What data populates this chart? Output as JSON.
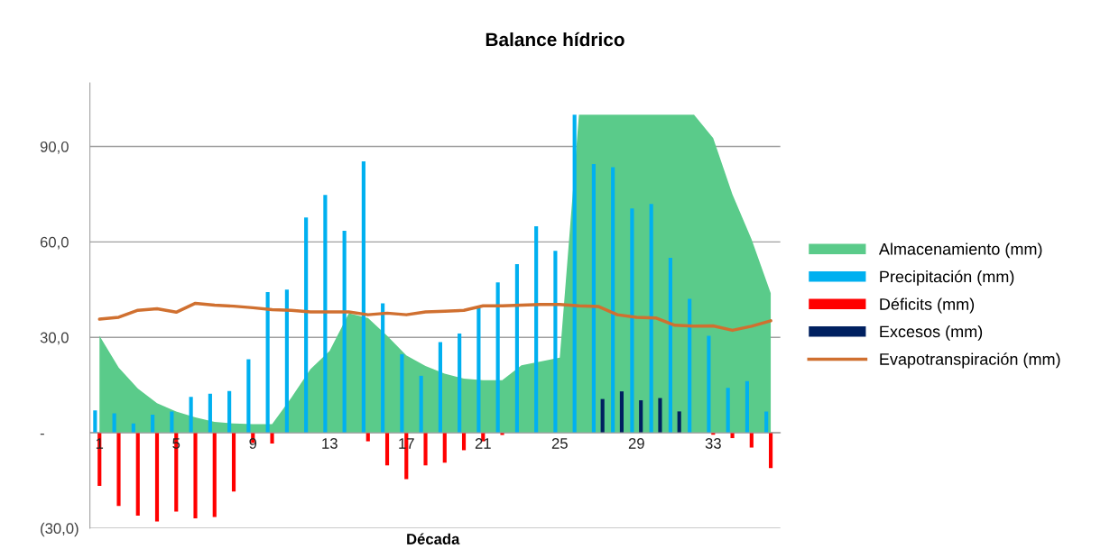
{
  "chart_data": {
    "type": "bar",
    "title": "Balance hídrico",
    "xlabel": "Década",
    "categories": [
      "1",
      null,
      null,
      null,
      "5",
      null,
      null,
      null,
      "9",
      null,
      null,
      null,
      "13",
      null,
      null,
      null,
      "17",
      null,
      null,
      null,
      "21",
      null,
      null,
      null,
      "25",
      null,
      null,
      null,
      "29",
      null,
      null,
      null,
      "33",
      null,
      null,
      null
    ],
    "series": [
      {
        "name": "Almacenamiento (mm)",
        "type": "area",
        "color": "#5acb8a",
        "values": [
          30.5,
          20.5,
          13.9,
          9.3,
          6.7,
          4.8,
          3.4,
          2.9,
          2.7,
          2.7,
          11.0,
          20.0,
          25.7,
          37.6,
          36.1,
          30.5,
          24.3,
          21.0,
          18.6,
          17.0,
          16.5,
          16.5,
          21.2,
          22.4,
          23.6,
          100,
          100,
          100,
          100,
          100,
          100,
          100,
          92.6,
          75.0,
          60.8,
          43.9
        ]
      },
      {
        "name": "Precipitación (mm)",
        "color": "#00b0f0",
        "values": [
          7.0,
          6.1,
          2.9,
          5.7,
          6.7,
          11.3,
          12.3,
          13.1,
          23.1,
          44.2,
          45.0,
          67.7,
          74.8,
          63.5,
          85.3,
          40.7,
          24.7,
          17.9,
          28.5,
          31.2,
          39.3,
          47.3,
          53.0,
          64.9,
          57.2,
          100,
          84.5,
          83.5,
          70.5,
          71.9,
          55.0,
          42.1,
          30.5,
          14.1,
          16.2,
          6.7
        ]
      },
      {
        "name": "Déficits (mm)",
        "color": "#ff0000",
        "values": [
          -16.7,
          -23.0,
          -26.1,
          -27.9,
          -24.8,
          -26.9,
          -26.5,
          -18.5,
          -3.2,
          -3.4,
          0,
          0,
          0,
          0,
          -2.7,
          -10.3,
          -14.6,
          -10.3,
          -9.4,
          -5.5,
          -2.7,
          -0.7,
          0,
          0,
          0,
          0,
          0,
          0,
          0,
          0,
          0,
          0,
          -0.6,
          -1.7,
          -4.7,
          -11.1
        ]
      },
      {
        "name": "Excesos (mm)",
        "color": "#002060",
        "values": [
          0,
          0,
          0,
          0,
          0,
          0,
          0,
          0,
          0,
          0,
          0,
          0,
          0,
          0,
          0,
          0,
          0,
          0,
          0,
          0,
          0,
          0,
          0,
          0,
          0,
          0,
          10.6,
          13.0,
          10.2,
          10.9,
          6.7,
          0,
          0,
          0,
          0,
          0
        ]
      },
      {
        "name": "Evapotranspiración (mm)",
        "type": "line",
        "color": "#d07030",
        "values": [
          35.7,
          36.3,
          38.5,
          39.0,
          37.9,
          40.7,
          40.1,
          39.8,
          39.3,
          38.7,
          38.5,
          38.0,
          38.0,
          38.0,
          37.1,
          37.6,
          37.1,
          38.0,
          38.2,
          38.5,
          39.9,
          39.9,
          40.1,
          40.3,
          40.3,
          39.9,
          39.7,
          37.1,
          36.3,
          36.1,
          33.8,
          33.5,
          33.6,
          32.2,
          33.5,
          35.2
        ]
      }
    ],
    "ylim": [
      -30,
      110
    ],
    "yticks": [
      {
        "value": -30,
        "label": "(30,0)"
      },
      {
        "value": 0,
        "label": "-"
      },
      {
        "value": 30,
        "label": "30,0"
      },
      {
        "value": 60,
        "label": "60,0"
      },
      {
        "value": 90,
        "label": "90,0"
      }
    ],
    "grid": "y",
    "legend": "right",
    "marker": "none",
    "line_style": "solid"
  }
}
